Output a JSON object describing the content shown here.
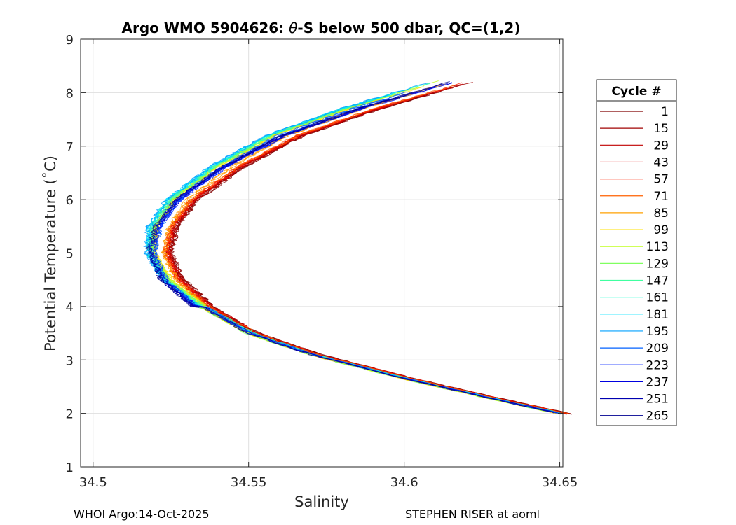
{
  "chart_data": {
    "type": "line",
    "title_prefix": "Argo WMO 5904626: ",
    "title_theta": "θ",
    "title_suffix": "-S below 500 dbar,  QC=(1,2)",
    "xlabel": "Salinity",
    "ylabel": "Potential Temperature (˚C)",
    "xlim": [
      34.496,
      34.651
    ],
    "ylim": [
      1,
      9
    ],
    "xticks": [
      34.5,
      34.55,
      34.6,
      34.65
    ],
    "xtick_labels": [
      "34.5",
      "34.55",
      "34.6",
      "34.65"
    ],
    "yticks": [
      1,
      2,
      3,
      4,
      5,
      6,
      7,
      8,
      9
    ],
    "ytick_labels": [
      "1",
      "2",
      "3",
      "4",
      "5",
      "6",
      "7",
      "8",
      "9"
    ],
    "grid": true,
    "legend_title": "Cycle #",
    "legend_position": "outside-right",
    "legend": [
      {
        "label": "1",
        "color": "#800000"
      },
      {
        "label": "15",
        "color": "#a00000"
      },
      {
        "label": "29",
        "color": "#c00000"
      },
      {
        "label": "43",
        "color": "#e00000"
      },
      {
        "label": "57",
        "color": "#ff2000"
      },
      {
        "label": "71",
        "color": "#ff6000"
      },
      {
        "label": "85",
        "color": "#ffa000"
      },
      {
        "label": "99",
        "color": "#ffe000"
      },
      {
        "label": "113",
        "color": "#c0ff20"
      },
      {
        "label": "129",
        "color": "#80ff60"
      },
      {
        "label": "147",
        "color": "#40ffa0"
      },
      {
        "label": "161",
        "color": "#20ffd0"
      },
      {
        "label": "181",
        "color": "#00e0ff"
      },
      {
        "label": "195",
        "color": "#00a0ff"
      },
      {
        "label": "209",
        "color": "#0060ff"
      },
      {
        "label": "223",
        "color": "#0020ff"
      },
      {
        "label": "237",
        "color": "#0000e0"
      },
      {
        "label": "251",
        "color": "#0000b0"
      },
      {
        "label": "265",
        "color": "#000090"
      }
    ],
    "reference_profile": [
      {
        "s": 34.651,
        "t": 1.98
      },
      {
        "s": 34.63,
        "t": 2.25
      },
      {
        "s": 34.6,
        "t": 2.65
      },
      {
        "s": 34.57,
        "t": 3.1
      },
      {
        "s": 34.55,
        "t": 3.5
      },
      {
        "s": 34.535,
        "t": 4.0
      },
      {
        "s": 34.525,
        "t": 4.5
      },
      {
        "s": 34.521,
        "t": 5.0
      },
      {
        "s": 34.523,
        "t": 5.5
      },
      {
        "s": 34.53,
        "t": 6.0
      },
      {
        "s": 34.545,
        "t": 6.6
      },
      {
        "s": 34.565,
        "t": 7.2
      },
      {
        "s": 34.59,
        "t": 7.7
      },
      {
        "s": 34.62,
        "t": 8.2
      }
    ]
  },
  "footer": {
    "left": "WHOI Argo:14-Oct-2025",
    "right": "STEPHEN RISER at aoml"
  }
}
